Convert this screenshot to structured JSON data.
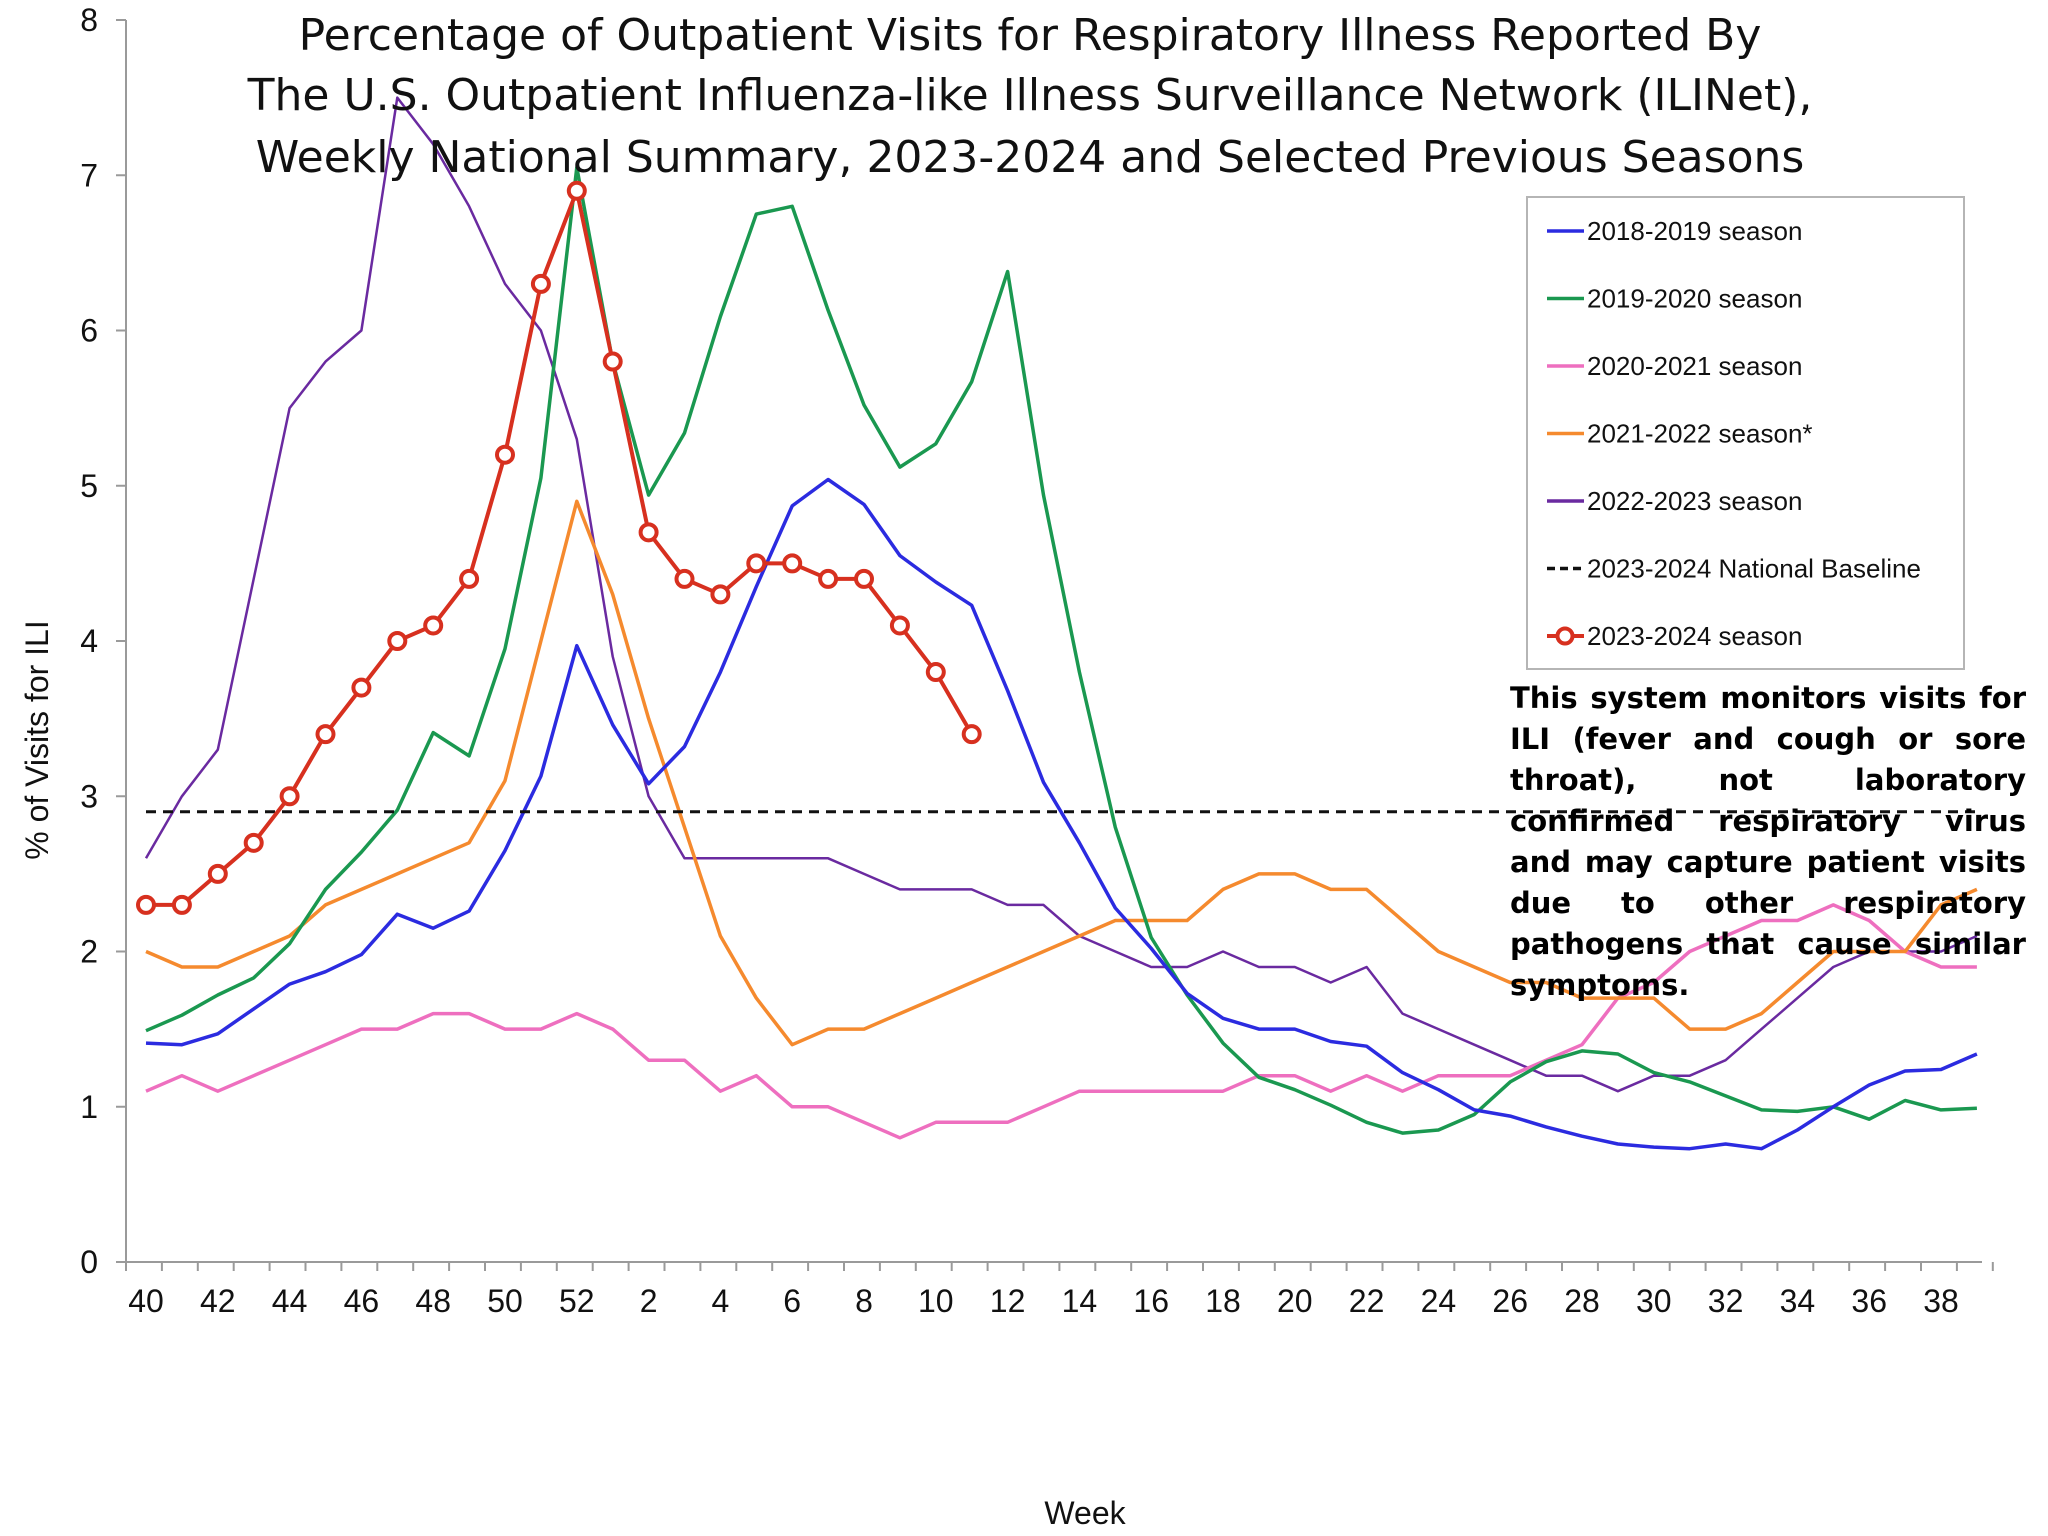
{
  "chart_data": {
    "type": "line",
    "title_lines": [
      "Percentage of Outpatient Visits for Respiratory Illness Reported By",
      "The U.S. Outpatient Influenza-like Illness Surveillance Network (ILINet),",
      "Weekly National Summary, 2023-2024 and Selected Previous Seasons"
    ],
    "xlabel": "Week",
    "ylabel": "% of Visits for ILI",
    "ylim": [
      0,
      8
    ],
    "y_ticks": [
      "0",
      "1",
      "2",
      "3",
      "4",
      "5",
      "6",
      "7",
      "8"
    ],
    "x_tick_labels": [
      "40",
      "42",
      "44",
      "46",
      "48",
      "50",
      "52",
      "2",
      "4",
      "6",
      "8",
      "10",
      "12",
      "14",
      "16",
      "18",
      "20",
      "22",
      "24",
      "26",
      "28",
      "30",
      "32",
      "34",
      "36",
      "38"
    ],
    "week_count": 52,
    "legend_position": "top-right",
    "series": [
      {
        "name": "2018-2019 season",
        "color": "#2B2BE0",
        "marker": "none",
        "values": [
          1.41,
          1.4,
          1.47,
          1.63,
          1.79,
          1.87,
          1.98,
          2.24,
          2.15,
          2.26,
          2.65,
          3.13,
          3.97,
          3.46,
          3.08,
          3.32,
          3.8,
          4.35,
          4.87,
          5.04,
          4.88,
          4.55,
          4.38,
          4.23,
          3.68,
          3.09,
          2.7,
          2.28,
          2.02,
          1.73,
          1.57,
          1.5,
          1.5,
          1.42,
          1.39,
          1.22,
          1.11,
          0.98,
          0.94,
          0.87,
          0.81,
          0.76,
          0.74,
          0.73,
          0.76,
          0.73,
          0.85,
          1.0,
          1.14,
          1.23,
          1.24,
          1.34
        ]
      },
      {
        "name": "2019-2020 season",
        "color": "#1A9850",
        "marker": "none",
        "values": [
          1.49,
          1.59,
          1.72,
          1.83,
          2.05,
          2.4,
          2.64,
          2.91,
          3.41,
          3.26,
          3.95,
          5.05,
          7.05,
          5.8,
          4.94,
          5.34,
          6.09,
          6.75,
          6.8,
          6.13,
          5.52,
          5.12,
          5.27,
          5.67,
          6.38,
          4.94,
          3.8,
          2.8,
          2.09,
          1.72,
          1.41,
          1.19,
          1.11,
          1.01,
          0.9,
          0.83,
          0.85,
          0.95,
          1.16,
          1.29,
          1.36,
          1.34,
          1.22,
          1.16,
          1.07,
          0.98,
          0.97,
          1.0,
          0.92,
          1.04,
          0.98,
          0.99
        ]
      },
      {
        "name": "2020-2021 season",
        "color": "#EE6FBF",
        "marker": "none",
        "values": [
          1.1,
          1.2,
          1.1,
          1.2,
          1.3,
          1.4,
          1.5,
          1.5,
          1.6,
          1.6,
          1.5,
          1.5,
          1.6,
          1.5,
          1.3,
          1.3,
          1.1,
          1.2,
          1.0,
          1.0,
          0.9,
          0.8,
          0.9,
          0.9,
          0.9,
          1.0,
          1.1,
          1.1,
          1.1,
          1.1,
          1.1,
          1.2,
          1.2,
          1.1,
          1.2,
          1.1,
          1.2,
          1.2,
          1.2,
          1.3,
          1.4,
          1.7,
          1.8,
          2.0,
          2.1,
          2.2,
          2.2,
          2.3,
          2.2,
          2.0,
          1.9,
          1.9
        ]
      },
      {
        "name": "2021-2022 season*",
        "color": "#F58A2E",
        "marker": "none",
        "values": [
          2.0,
          1.9,
          1.9,
          2.0,
          2.1,
          2.3,
          2.4,
          2.5,
          2.6,
          2.7,
          3.1,
          4.0,
          4.9,
          4.3,
          3.5,
          2.8,
          2.1,
          1.7,
          1.4,
          1.5,
          1.5,
          1.6,
          1.7,
          1.8,
          1.9,
          2.0,
          2.1,
          2.2,
          2.2,
          2.2,
          2.4,
          2.5,
          2.5,
          2.4,
          2.4,
          2.2,
          2.0,
          1.9,
          1.8,
          1.8,
          1.7,
          1.7,
          1.7,
          1.5,
          1.5,
          1.6,
          1.8,
          2.0,
          2.0,
          2.0,
          2.3,
          2.4
        ]
      },
      {
        "name": "2022-2023 season",
        "color": "#6A2AA0",
        "marker": "none",
        "values": [
          2.6,
          3.0,
          3.3,
          4.4,
          5.5,
          5.8,
          6.0,
          7.5,
          7.2,
          6.8,
          6.3,
          6.0,
          5.3,
          3.9,
          3.0,
          2.6,
          2.6,
          2.6,
          2.6,
          2.6,
          2.5,
          2.4,
          2.4,
          2.4,
          2.3,
          2.3,
          2.1,
          2.0,
          1.9,
          1.9,
          2.0,
          1.9,
          1.9,
          1.8,
          1.9,
          1.6,
          1.5,
          1.4,
          1.3,
          1.2,
          1.2,
          1.1,
          1.2,
          1.2,
          1.3,
          1.5,
          1.7,
          1.9,
          2.0,
          2.0,
          2.0,
          2.1
        ]
      },
      {
        "name": "2023-2024 National Baseline",
        "color": "#111111",
        "marker": "none",
        "dashed": true,
        "values": [
          2.9,
          2.9,
          2.9,
          2.9,
          2.9,
          2.9,
          2.9,
          2.9,
          2.9,
          2.9,
          2.9,
          2.9,
          2.9,
          2.9,
          2.9,
          2.9,
          2.9,
          2.9,
          2.9,
          2.9,
          2.9,
          2.9,
          2.9,
          2.9,
          2.9,
          2.9,
          2.9,
          2.9,
          2.9,
          2.9,
          2.9,
          2.9,
          2.9,
          2.9,
          2.9,
          2.9,
          2.9,
          2.9,
          2.9,
          2.9,
          2.9,
          2.9,
          2.9,
          2.9,
          2.9,
          2.9,
          2.9,
          2.9,
          2.9,
          2.9,
          2.9,
          2.9
        ]
      },
      {
        "name": "2023-2024 season",
        "color": "#D7301F",
        "marker": "circle",
        "values": [
          2.3,
          2.3,
          2.5,
          2.7,
          3.0,
          3.4,
          3.7,
          4.0,
          4.1,
          4.4,
          5.2,
          6.3,
          6.9,
          5.8,
          4.7,
          4.4,
          4.3,
          4.5,
          4.5,
          4.4,
          4.4,
          4.1,
          3.8,
          3.4
        ]
      }
    ],
    "annotation": "This system monitors visits for ILI (fever and cough or sore throat), not laboratory confirmed respiratory virus and may capture patient visits due to other respiratory pathogens that cause similar symptoms."
  }
}
